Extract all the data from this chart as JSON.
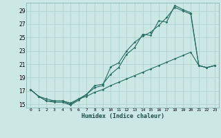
{
  "xlabel": "Humidex (Indice chaleur)",
  "background_color": "#cce8e5",
  "grid_color": "#aacfcc",
  "line_color": "#276b63",
  "xlim": [
    -0.5,
    23.5
  ],
  "ylim": [
    14.5,
    30.2
  ],
  "xticks": [
    0,
    1,
    2,
    3,
    4,
    5,
    6,
    7,
    8,
    9,
    10,
    11,
    12,
    13,
    14,
    15,
    16,
    17,
    18,
    19,
    20,
    21,
    22,
    23
  ],
  "yticks": [
    15,
    17,
    19,
    21,
    23,
    25,
    27,
    29
  ],
  "line1_x": [
    0,
    1,
    2,
    3,
    4,
    5,
    6,
    7,
    8,
    9,
    10,
    11,
    12,
    13,
    14,
    15,
    16,
    17,
    18,
    19,
    20,
    21,
    22,
    23
  ],
  "line1_y": [
    17.2,
    16.2,
    15.5,
    15.3,
    15.3,
    14.9,
    15.6,
    16.5,
    17.5,
    17.8,
    20.6,
    21.2,
    23.0,
    24.3,
    25.2,
    25.8,
    26.8,
    28.0,
    29.5,
    29.0,
    28.5,
    20.8,
    20.5,
    20.8
  ],
  "line2_x": [
    0,
    1,
    2,
    3,
    4,
    5,
    6,
    7,
    8,
    9,
    10,
    11,
    12,
    13,
    14,
    15,
    16,
    17,
    18,
    19,
    20,
    21,
    22,
    23
  ],
  "line2_y": [
    17.2,
    16.2,
    15.5,
    15.5,
    15.5,
    15.0,
    15.8,
    16.5,
    17.8,
    18.0,
    19.5,
    20.5,
    22.5,
    23.5,
    25.5,
    25.3,
    27.5,
    27.3,
    29.8,
    29.2,
    28.7,
    20.8,
    20.5,
    20.8
  ],
  "line3_x": [
    0,
    1,
    2,
    3,
    4,
    5,
    6,
    7,
    8,
    9,
    10,
    11,
    12,
    13,
    14,
    15,
    16,
    17,
    18,
    19,
    20,
    21,
    22,
    23
  ],
  "line3_y": [
    17.2,
    16.2,
    15.8,
    15.5,
    15.5,
    15.2,
    15.8,
    16.2,
    16.8,
    17.2,
    17.8,
    18.3,
    18.8,
    19.3,
    19.8,
    20.3,
    20.8,
    21.3,
    21.8,
    22.3,
    22.8,
    20.8,
    20.5,
    20.8
  ]
}
